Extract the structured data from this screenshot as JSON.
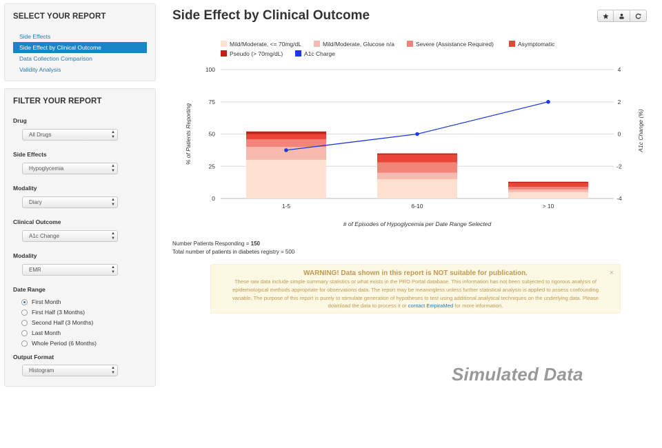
{
  "sidebar": {
    "report": {
      "heading": "SELECT YOUR REPORT",
      "items": [
        "Side Effects",
        "Side Effect by Clinical Outcome",
        "Data Collection Comparison",
        "Validity Analysis"
      ],
      "active_index": 1
    },
    "filter": {
      "heading": "FILTER YOUR REPORT",
      "drug": {
        "label": "Drug",
        "value": "All Drugs"
      },
      "side_effects": {
        "label": "Side Effects",
        "value": "Hypoglycemia"
      },
      "modality": {
        "label": "Modality",
        "value": "Diary"
      },
      "clinical_outcome": {
        "label": "Clinical Outcome",
        "value": "A1c Change"
      },
      "modality2": {
        "label": "Modality",
        "value": "EMR"
      },
      "date_range": {
        "label": "Date Range",
        "options": [
          "First Month",
          "First Half (3 Months)",
          "Second Half (3 Months)",
          "Last Month",
          "Whole Period (6 Months)"
        ],
        "selected_index": 0
      },
      "output_format": {
        "label": "Output Format",
        "value": "Histogram"
      }
    }
  },
  "main": {
    "title": "Side Effect by Clinical Outcome",
    "toolbar": [
      "star-icon",
      "user-icon",
      "refresh-icon"
    ],
    "patients_label": "Number Patients Responding = ",
    "patients_value": "150",
    "registry_text": "Total number of patients in diabetes registry = 500",
    "warning": {
      "title": "WARNING! Data shown in this report is NOT suitable for publication.",
      "body": "These raw data include simple summary statistics or what exists in the PRO Portal database. This information has not been subjected to rigorous analysis of epidemiological methods appropriate for observations data. The report may be meaningless unless further statistical analysis is applied to assess confounding variable. The purpose of this report is purely to stimulate generation of hypotheses to test using additional analytical techniques on the underlying data. Please download the data to process it or ",
      "link": "contact EmpiraMed",
      "tail": " for more information.",
      "close": "×"
    },
    "watermark": "Simulated Data"
  },
  "chart_data": {
    "type": "bar",
    "stacked": true,
    "categories": [
      "1-5",
      "6-10",
      "> 10"
    ],
    "xlabel": "# of Episodes of Hypoglycemia per Date Range Selected",
    "ylabel": "% of Patients Reporting",
    "y2label": "A1c Change (%)",
    "ylim": [
      0,
      100
    ],
    "y2lim": [
      -4,
      4
    ],
    "yticks": [
      0,
      25,
      50,
      75,
      100
    ],
    "y2ticks": [
      -4,
      -2,
      0,
      2,
      4
    ],
    "legend_position": "top",
    "series": [
      {
        "name": "Mild/Moderate, <= 70mg/dL",
        "color": "#fde0d0",
        "values": [
          30,
          15,
          5
        ]
      },
      {
        "name": "Mild/Moderate, Glucose n/a",
        "color": "#f8b9ae",
        "values": [
          10,
          5,
          2
        ]
      },
      {
        "name": "Severe (Assistance Required)",
        "color": "#f38479",
        "values": [
          6,
          8,
          2
        ]
      },
      {
        "name": "Asymptomatic",
        "color": "#ea4637",
        "values": [
          4,
          6,
          3
        ]
      },
      {
        "name": "Pseudo (> 70mg/dL)",
        "color": "#c0201a",
        "values": [
          2,
          1,
          1
        ]
      }
    ],
    "line_series": {
      "name": "A1c Charge",
      "color": "#1d38e6",
      "values": [
        -1,
        0,
        2
      ]
    }
  }
}
